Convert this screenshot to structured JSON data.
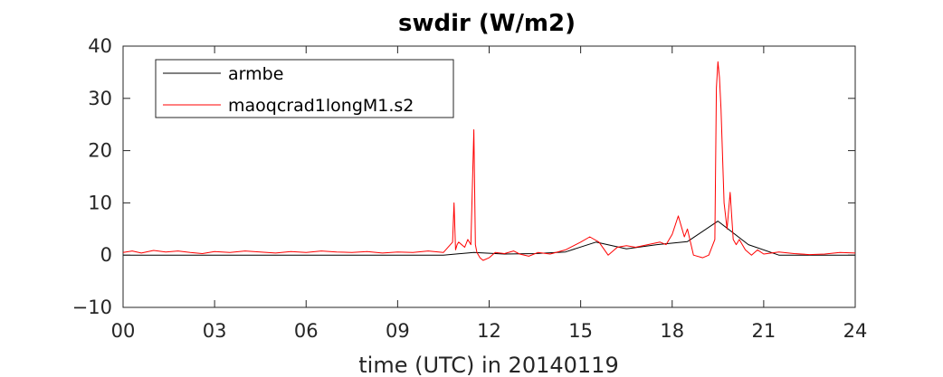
{
  "chart_data": {
    "type": "line",
    "title": "swdir  (W/m2)",
    "xlabel": "time (UTC) in 20140119",
    "ylabel": "",
    "xlim": [
      0,
      24
    ],
    "ylim": [
      -10,
      40
    ],
    "x_ticks": [
      0,
      3,
      6,
      9,
      12,
      15,
      18,
      21,
      24
    ],
    "x_tick_labels": [
      "00",
      "03",
      "06",
      "09",
      "12",
      "15",
      "18",
      "21",
      "24"
    ],
    "y_ticks": [
      -10,
      0,
      10,
      20,
      30,
      40
    ],
    "y_tick_labels": [
      "−10",
      "0",
      "10",
      "20",
      "30",
      "40"
    ],
    "grid": false,
    "legend": {
      "position": "top-left",
      "entries": [
        "armbe",
        "maoqcrad1longM1.s2"
      ]
    },
    "series": [
      {
        "name": "armbe",
        "color": "#000000",
        "x": [
          0,
          10.5,
          11.5,
          12.5,
          13.5,
          14.5,
          15.5,
          16.5,
          17.5,
          18.5,
          19.5,
          20.5,
          21.5,
          22.5,
          24
        ],
        "y": [
          0,
          0,
          0.5,
          0.2,
          0.3,
          0.6,
          2.5,
          1.2,
          2.0,
          2.6,
          6.5,
          2.0,
          0,
          0,
          0
        ]
      },
      {
        "name": "maoqcrad1longM1.s2",
        "color": "#ff0000",
        "x": [
          0,
          0.3,
          0.6,
          1.0,
          1.4,
          1.8,
          2.2,
          2.6,
          3.0,
          3.5,
          4.0,
          4.5,
          5.0,
          5.5,
          6.0,
          6.5,
          7.0,
          7.5,
          8.0,
          8.5,
          9.0,
          9.5,
          10.0,
          10.5,
          10.8,
          10.85,
          10.9,
          10.95,
          11.0,
          11.2,
          11.3,
          11.4,
          11.5,
          11.55,
          11.6,
          11.7,
          11.8,
          12.0,
          12.2,
          12.5,
          12.8,
          13.0,
          13.3,
          13.6,
          14.0,
          14.5,
          15.0,
          15.3,
          15.6,
          15.9,
          16.2,
          16.5,
          16.8,
          17.2,
          17.6,
          17.8,
          18.0,
          18.2,
          18.4,
          18.5,
          18.7,
          19.0,
          19.2,
          19.4,
          19.45,
          19.5,
          19.55,
          19.6,
          19.7,
          19.8,
          19.9,
          20.0,
          20.1,
          20.2,
          20.4,
          20.6,
          20.8,
          21.0,
          21.5,
          22.0,
          22.5,
          23.0,
          23.5,
          24.0
        ],
        "y": [
          0.5,
          0.8,
          0.4,
          0.9,
          0.6,
          0.8,
          0.5,
          0.3,
          0.7,
          0.5,
          0.8,
          0.6,
          0.4,
          0.7,
          0.5,
          0.8,
          0.6,
          0.5,
          0.7,
          0.4,
          0.6,
          0.5,
          0.8,
          0.5,
          2.5,
          10.0,
          1.0,
          2.0,
          2.5,
          1.5,
          3.0,
          2.0,
          24.0,
          2.0,
          0.5,
          -0.5,
          -1.0,
          -0.5,
          0.5,
          0.3,
          0.8,
          0.2,
          -0.2,
          0.5,
          0.2,
          1.0,
          2.5,
          3.5,
          2.5,
          0.0,
          1.5,
          1.8,
          1.5,
          2.0,
          2.5,
          2.0,
          4.0,
          7.5,
          3.5,
          5.0,
          0.0,
          -0.5,
          0.0,
          3.0,
          32.0,
          37.0,
          34.0,
          28.0,
          10.0,
          5.0,
          12.0,
          3.0,
          2.0,
          3.0,
          1.0,
          0.0,
          1.0,
          0.2,
          0.6,
          0.3,
          0.1,
          0.2,
          0.5,
          0.4
        ]
      }
    ]
  }
}
